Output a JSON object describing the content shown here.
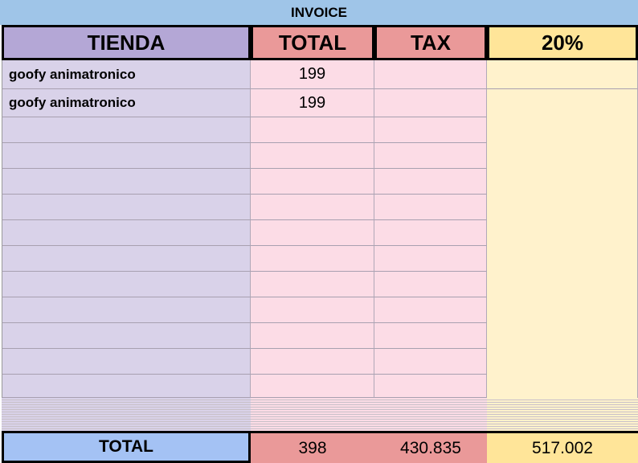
{
  "title": "INVOICE",
  "table": {
    "header": [
      "TIENDA",
      "TOTAL",
      "TAX",
      "20%"
    ],
    "rows": [
      [
        "goofy animatronico",
        199
      ],
      [
        "goofy animatronico",
        199
      ]
    ],
    "footer": [
      "TOTAL",
      398,
      430.835,
      517.002
    ]
  }
}
